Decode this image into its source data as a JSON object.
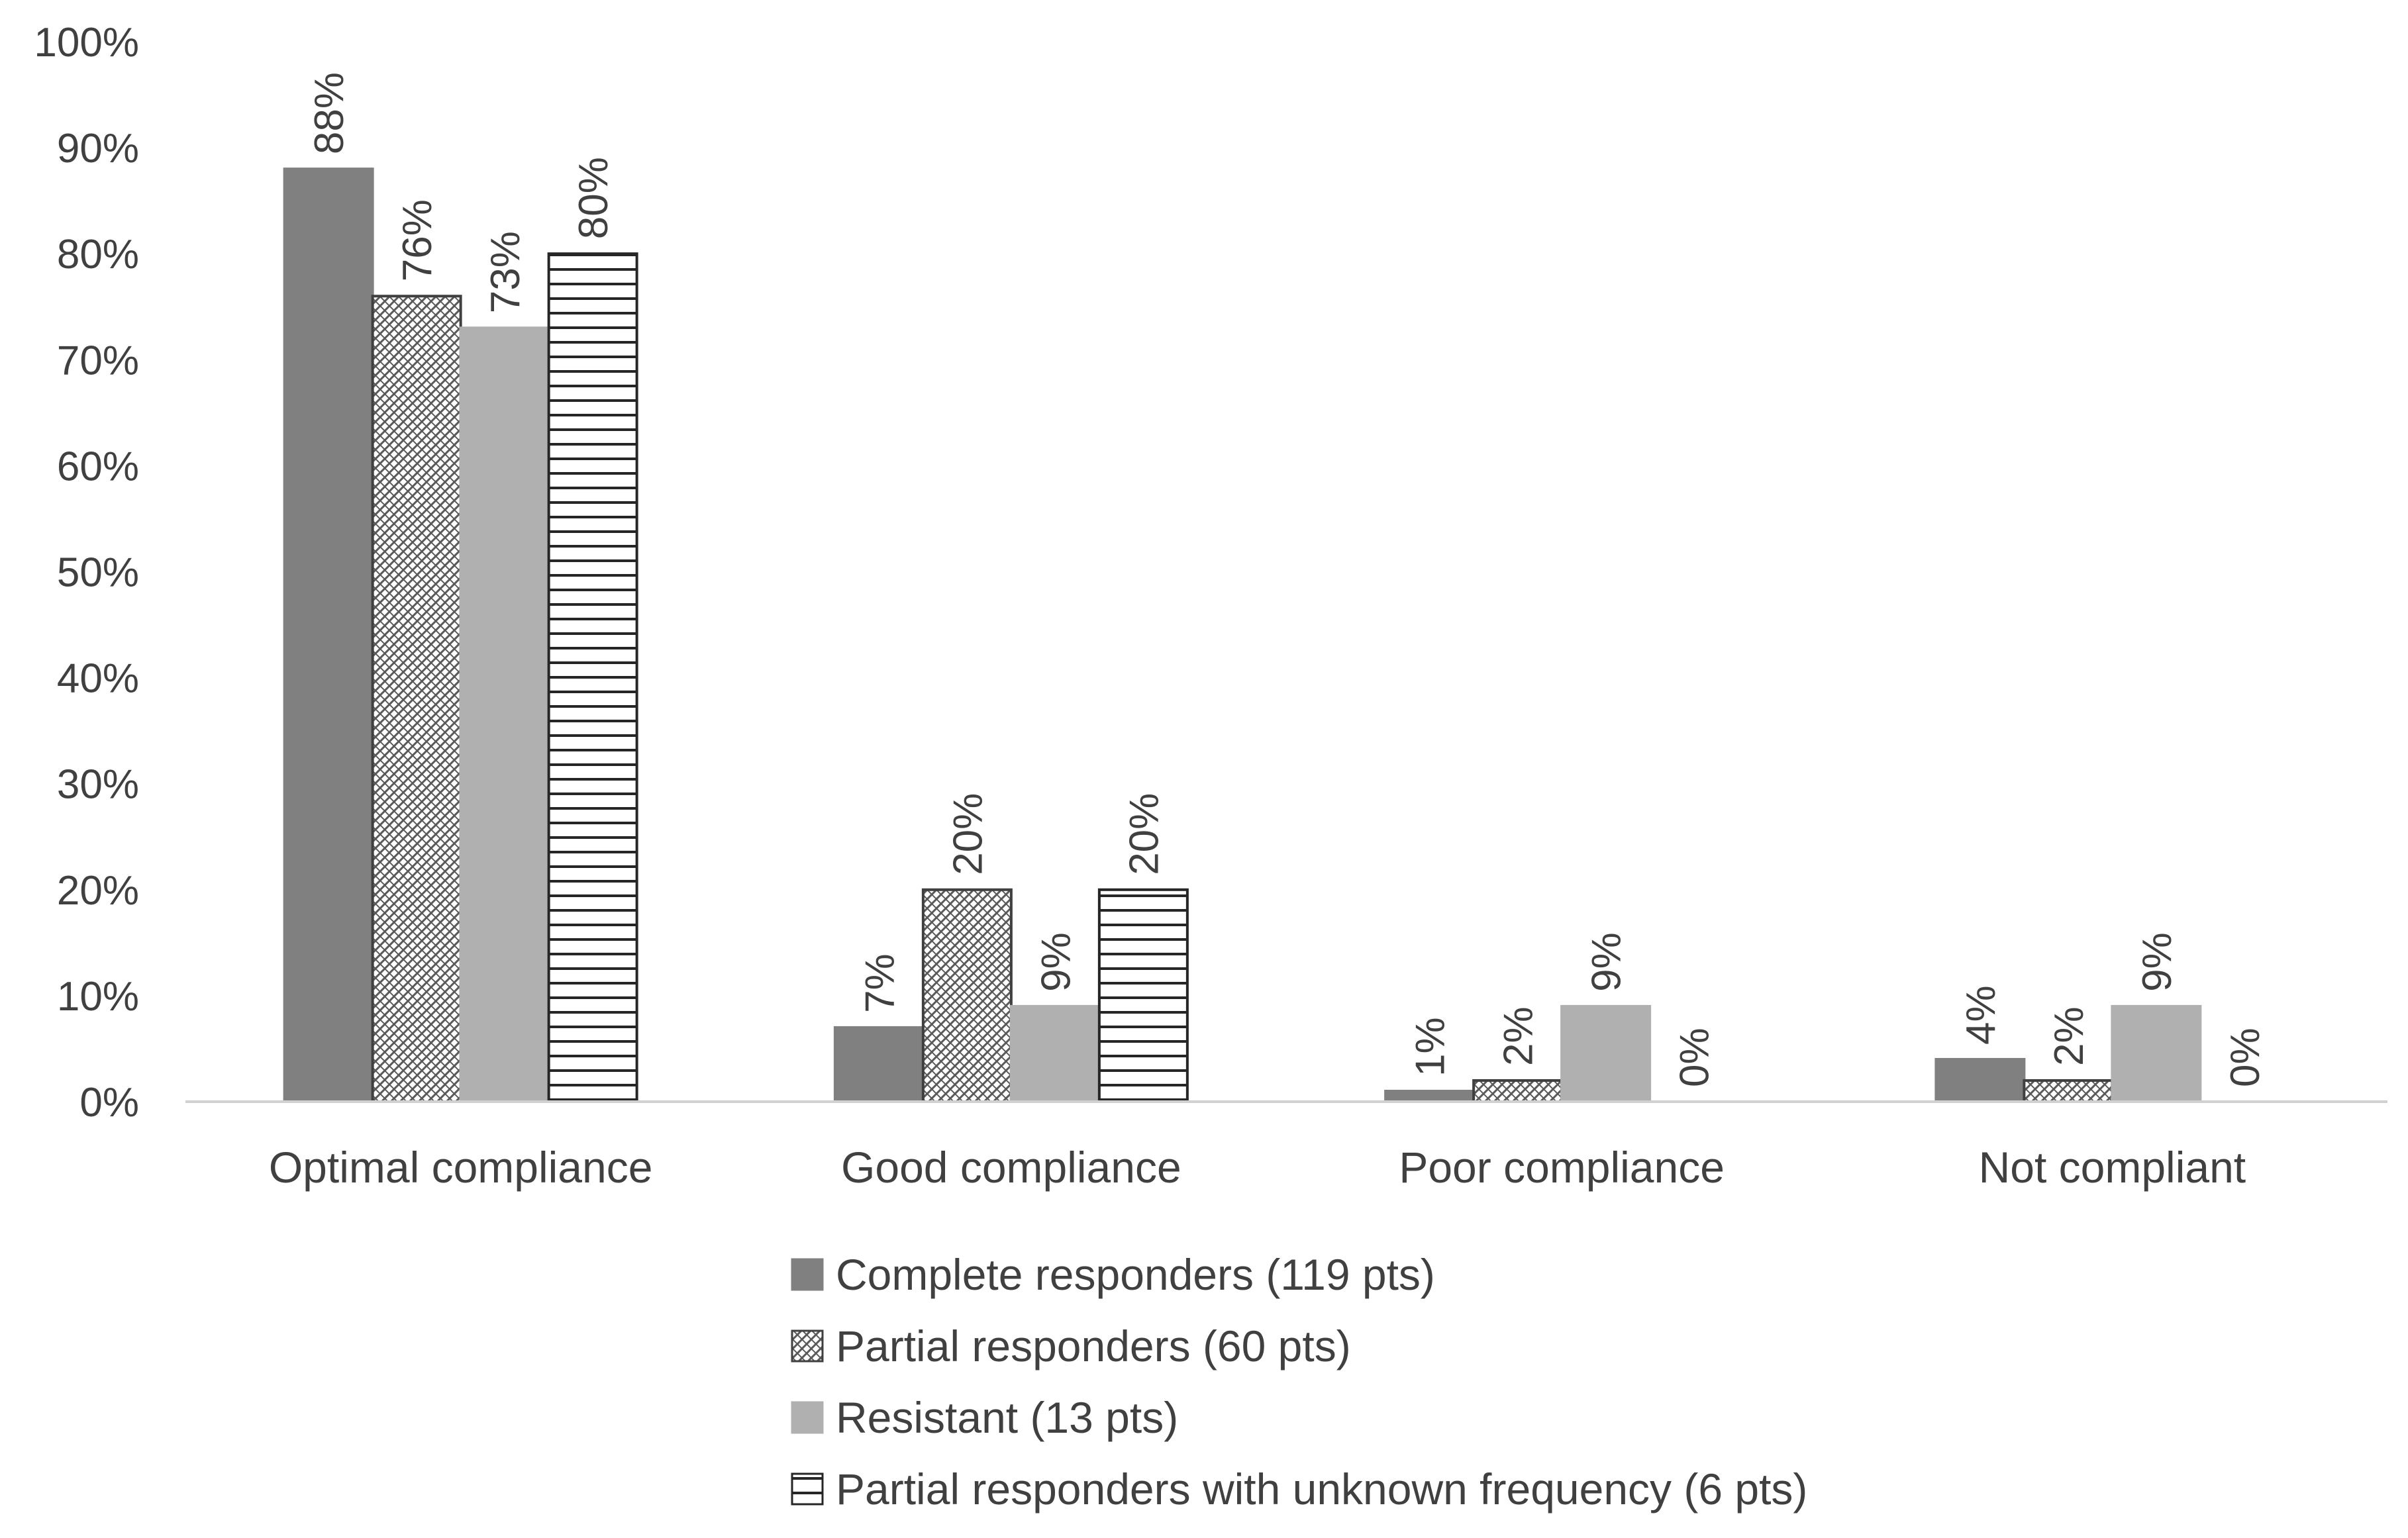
{
  "chart_data": {
    "type": "bar",
    "categories": [
      "Optimal compliance",
      "Good compliance",
      "Poor compliance",
      "Not compliant"
    ],
    "series": [
      {
        "name": "Complete responders (119 pts)",
        "values": [
          88,
          7,
          1,
          4
        ],
        "labels": [
          "88%",
          "7%",
          "1%",
          "4%"
        ],
        "pattern": "solid-dark",
        "color": "#808080"
      },
      {
        "name": "Partial responders (60 pts)",
        "values": [
          76,
          20,
          2,
          2
        ],
        "labels": [
          "76%",
          "20%",
          "2%",
          "2%"
        ],
        "pattern": "crosshatch",
        "color": "#595959"
      },
      {
        "name": "Resistant (13 pts)",
        "values": [
          73,
          9,
          9,
          9
        ],
        "labels": [
          "73%",
          "9%",
          "9%",
          "9%"
        ],
        "pattern": "solid-light",
        "color": "#b0b0b0"
      },
      {
        "name": "Partial responders with unknown frequency (6 pts)",
        "values": [
          80,
          20,
          0,
          0
        ],
        "labels": [
          "80%",
          "20%",
          "0%",
          "0%"
        ],
        "pattern": "horizontal-lines",
        "color": "#262626"
      }
    ],
    "ylim": [
      0,
      100
    ],
    "yticks": [
      "0%",
      "10%",
      "20%",
      "30%",
      "40%",
      "50%",
      "60%",
      "70%",
      "80%",
      "90%",
      "100%"
    ],
    "grid": false,
    "legend": "bottom"
  }
}
